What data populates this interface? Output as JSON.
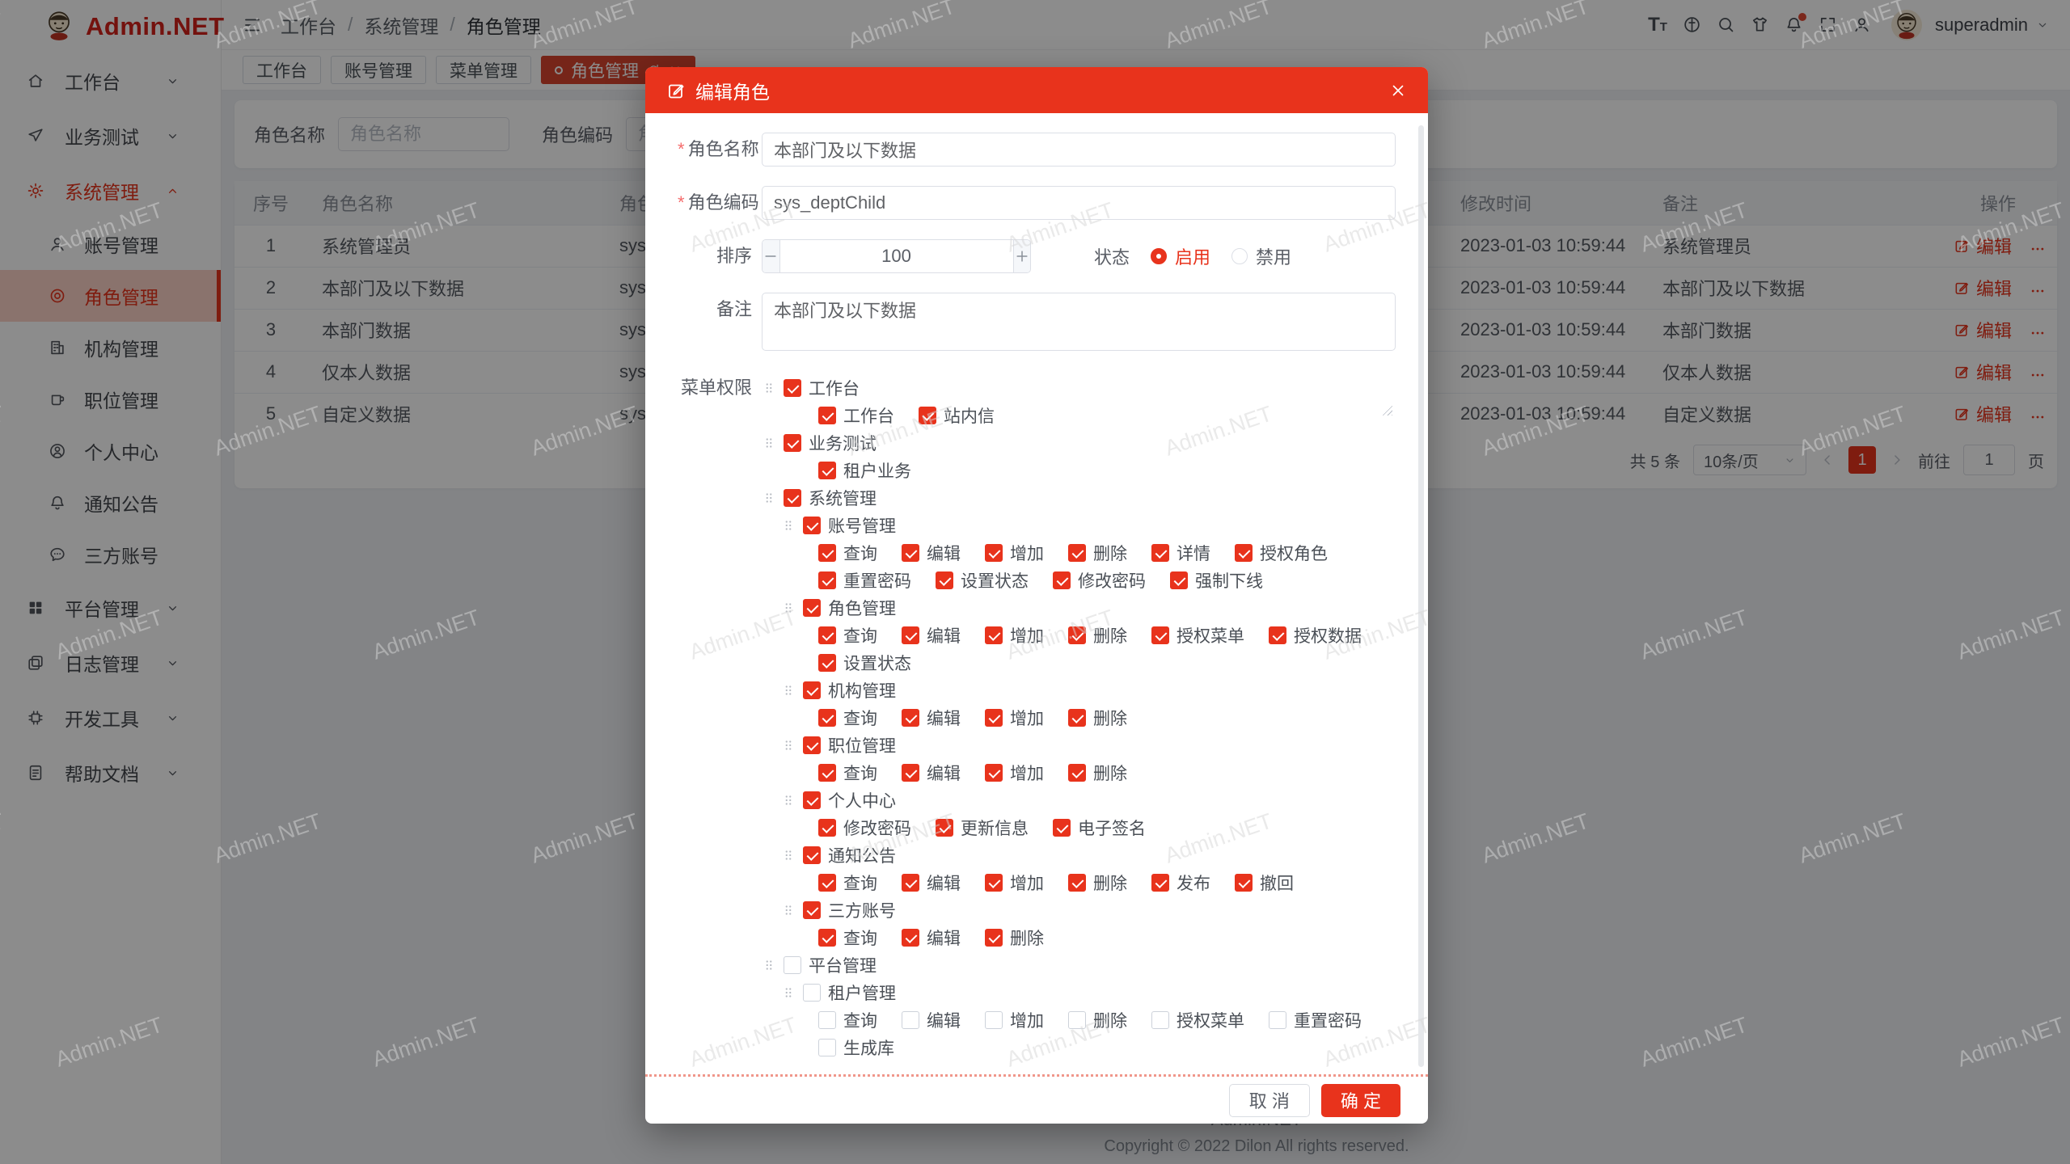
{
  "app": {
    "name": "Admin.NET"
  },
  "topbar": {
    "breadcrumb": [
      "工作台",
      "系统管理",
      "角色管理"
    ],
    "separator": "/",
    "icons": [
      "font-size",
      "language",
      "search",
      "theme",
      "bell",
      "fullscreen",
      "user"
    ],
    "user": "superadmin"
  },
  "tabs": [
    {
      "key": "workbench",
      "label": "工作台",
      "active": false
    },
    {
      "key": "account",
      "label": "账号管理",
      "active": false
    },
    {
      "key": "menu",
      "label": "菜单管理",
      "active": false
    },
    {
      "key": "role",
      "label": "角色管理",
      "active": true
    }
  ],
  "sidebar": {
    "items": [
      {
        "key": "workbench",
        "label": "工作台",
        "icon": "home",
        "chevron": "down"
      },
      {
        "key": "business-test",
        "label": "业务测试",
        "icon": "send",
        "chevron": "down"
      },
      {
        "key": "system-manage",
        "label": "系统管理",
        "icon": "gear",
        "chevron": "up",
        "active": true,
        "children": [
          {
            "key": "account-manage",
            "label": "账号管理",
            "icon": "user"
          },
          {
            "key": "role-manage",
            "label": "角色管理",
            "icon": "role",
            "active": true
          },
          {
            "key": "org-manage",
            "label": "机构管理",
            "icon": "building"
          },
          {
            "key": "position-manage",
            "label": "职位管理",
            "icon": "mug"
          },
          {
            "key": "profile-center",
            "label": "个人中心",
            "icon": "person"
          },
          {
            "key": "notice",
            "label": "通知公告",
            "icon": "bell"
          },
          {
            "key": "third-account",
            "label": "三方账号",
            "icon": "chat"
          }
        ]
      },
      {
        "key": "platform-manage",
        "label": "平台管理",
        "icon": "grid",
        "chevron": "down"
      },
      {
        "key": "log-manage",
        "label": "日志管理",
        "icon": "logs",
        "chevron": "down"
      },
      {
        "key": "dev-tools",
        "label": "开发工具",
        "icon": "chip",
        "chevron": "down"
      },
      {
        "key": "help-docs",
        "label": "帮助文档",
        "icon": "doc",
        "chevron": "down"
      }
    ]
  },
  "search": {
    "name_label": "角色名称",
    "name_placeholder": "角色名称",
    "code_label": "角色编码",
    "code_placeholder": "角色编码"
  },
  "table": {
    "columns": [
      "序号",
      "角色名称",
      "角色编码",
      "修改时间",
      "备注",
      "操作"
    ],
    "edit_label": "编辑",
    "rows": [
      {
        "no": "1",
        "name": "系统管理员",
        "code": "sys_a",
        "time": "2023-01-03 10:59:44",
        "remark": "系统管理员"
      },
      {
        "no": "2",
        "name": "本部门及以下数据",
        "code": "sys_d",
        "time": "2023-01-03 10:59:44",
        "remark": "本部门及以下数据"
      },
      {
        "no": "3",
        "name": "本部门数据",
        "code": "sys_d",
        "time": "2023-01-03 10:59:44",
        "remark": "本部门数据"
      },
      {
        "no": "4",
        "name": "仅本人数据",
        "code": "sys_s",
        "time": "2023-01-03 10:59:44",
        "remark": "仅本人数据"
      },
      {
        "no": "5",
        "name": "自定义数据",
        "code": "sys_c",
        "time": "2023-01-03 10:59:44",
        "remark": "自定义数据"
      }
    ]
  },
  "pagination": {
    "total": "共 5 条",
    "page_size": "10条/页",
    "current": "1",
    "goto_label": "前往",
    "goto_value": "1",
    "page_label": "页"
  },
  "modal": {
    "title": "编辑角色",
    "fields": {
      "name_label": "角色名称",
      "name_value": "本部门及以下数据",
      "code_label": "角色编码",
      "code_value": "sys_deptChild",
      "sort_label": "排序",
      "sort_value": "100",
      "status_label": "状态",
      "status_options": [
        {
          "label": "启用",
          "checked": true
        },
        {
          "label": "禁用",
          "checked": false
        }
      ],
      "remark_label": "备注",
      "remark_value": "本部门及以下数据",
      "perm_label": "菜单权限"
    },
    "tree": [
      {
        "level": 1,
        "label": "工作台",
        "checked": true,
        "leaves": [
          {
            "label": "工作台",
            "checked": true
          },
          {
            "label": "站内信",
            "checked": true
          }
        ]
      },
      {
        "level": 1,
        "label": "业务测试",
        "checked": true,
        "leaves": [
          {
            "label": "租户业务",
            "checked": true
          }
        ]
      },
      {
        "level": 1,
        "label": "系统管理",
        "checked": true,
        "leaves": []
      },
      {
        "level": 2,
        "label": "账号管理",
        "checked": true,
        "leaves": [
          {
            "label": "查询",
            "checked": true
          },
          {
            "label": "编辑",
            "checked": true
          },
          {
            "label": "增加",
            "checked": true
          },
          {
            "label": "删除",
            "checked": true
          },
          {
            "label": "详情",
            "checked": true
          },
          {
            "label": "授权角色",
            "checked": true
          },
          {
            "label": "重置密码",
            "checked": true
          },
          {
            "label": "设置状态",
            "checked": true
          },
          {
            "label": "修改密码",
            "checked": true
          },
          {
            "label": "强制下线",
            "checked": true
          }
        ]
      },
      {
        "level": 2,
        "label": "角色管理",
        "checked": true,
        "leaves": [
          {
            "label": "查询",
            "checked": true
          },
          {
            "label": "编辑",
            "checked": true
          },
          {
            "label": "增加",
            "checked": true
          },
          {
            "label": "删除",
            "checked": true
          },
          {
            "label": "授权菜单",
            "checked": true
          },
          {
            "label": "授权数据",
            "checked": true
          },
          {
            "label": "设置状态",
            "checked": true
          }
        ]
      },
      {
        "level": 2,
        "label": "机构管理",
        "checked": true,
        "leaves": [
          {
            "label": "查询",
            "checked": true
          },
          {
            "label": "编辑",
            "checked": true
          },
          {
            "label": "增加",
            "checked": true
          },
          {
            "label": "删除",
            "checked": true
          }
        ]
      },
      {
        "level": 2,
        "label": "职位管理",
        "checked": true,
        "leaves": [
          {
            "label": "查询",
            "checked": true
          },
          {
            "label": "编辑",
            "checked": true
          },
          {
            "label": "增加",
            "checked": true
          },
          {
            "label": "删除",
            "checked": true
          }
        ]
      },
      {
        "level": 2,
        "label": "个人中心",
        "checked": true,
        "leaves": [
          {
            "label": "修改密码",
            "checked": true
          },
          {
            "label": "更新信息",
            "checked": true
          },
          {
            "label": "电子签名",
            "checked": true
          }
        ]
      },
      {
        "level": 2,
        "label": "通知公告",
        "checked": true,
        "leaves": [
          {
            "label": "查询",
            "checked": true
          },
          {
            "label": "编辑",
            "checked": true
          },
          {
            "label": "增加",
            "checked": true
          },
          {
            "label": "删除",
            "checked": true
          },
          {
            "label": "发布",
            "checked": true
          },
          {
            "label": "撤回",
            "checked": true
          }
        ]
      },
      {
        "level": 2,
        "label": "三方账号",
        "checked": true,
        "leaves": [
          {
            "label": "查询",
            "checked": true
          },
          {
            "label": "编辑",
            "checked": true
          },
          {
            "label": "删除",
            "checked": true
          }
        ]
      },
      {
        "level": 1,
        "label": "平台管理",
        "checked": false,
        "leaves": []
      },
      {
        "level": 2,
        "label": "租户管理",
        "checked": false,
        "leaves": [
          {
            "label": "查询",
            "checked": false
          },
          {
            "label": "编辑",
            "checked": false
          },
          {
            "label": "增加",
            "checked": false
          },
          {
            "label": "删除",
            "checked": false
          },
          {
            "label": "授权菜单",
            "checked": false
          },
          {
            "label": "重置密码",
            "checked": false
          },
          {
            "label": "生成库",
            "checked": false
          }
        ]
      }
    ],
    "cancel_label": "取 消",
    "confirm_label": "确 定"
  },
  "page_footer": {
    "line1": "Admin.NET",
    "line2": "Copyright © 2022 Dilon All rights reserved."
  },
  "watermark": "Admin.NET",
  "colors": {
    "primary": "#e8331c",
    "active_tab": "#d8442e",
    "sidebar_active_bg": "#fbd2c7"
  }
}
